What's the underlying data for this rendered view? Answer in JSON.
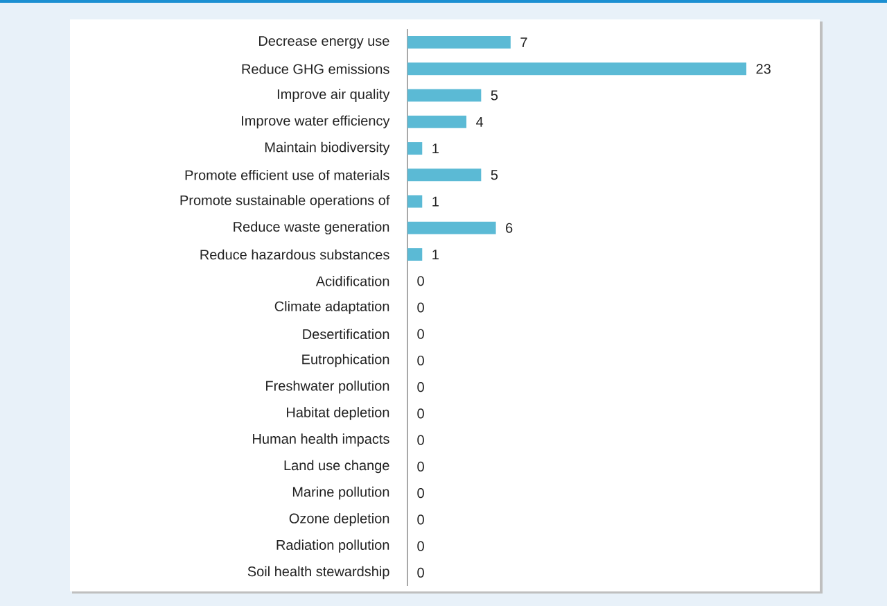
{
  "chart_data": {
    "type": "bar",
    "orientation": "horizontal",
    "data_labels": true,
    "color": "#5bbad5",
    "categories": [
      "Decrease energy use",
      "Reduce GHG emissions",
      "Improve air quality",
      "Improve water efficiency",
      "Maintain biodiversity",
      "Promote efficient use of materials",
      "Promote sustainable operations of",
      "Reduce waste generation",
      "Reduce hazardous substances",
      "Acidification",
      "Climate adaptation",
      "Desertification",
      "Eutrophication",
      "Freshwater pollution",
      "Habitat depletion",
      "Human health impacts",
      "Land use change",
      "Marine pollution",
      "Ozone depletion",
      "Radiation pollution",
      "Soil health stewardship"
    ],
    "values": [
      7,
      23,
      5,
      4,
      1,
      5,
      1,
      6,
      1,
      0,
      0,
      0,
      0,
      0,
      0,
      0,
      0,
      0,
      0,
      0,
      0
    ]
  }
}
